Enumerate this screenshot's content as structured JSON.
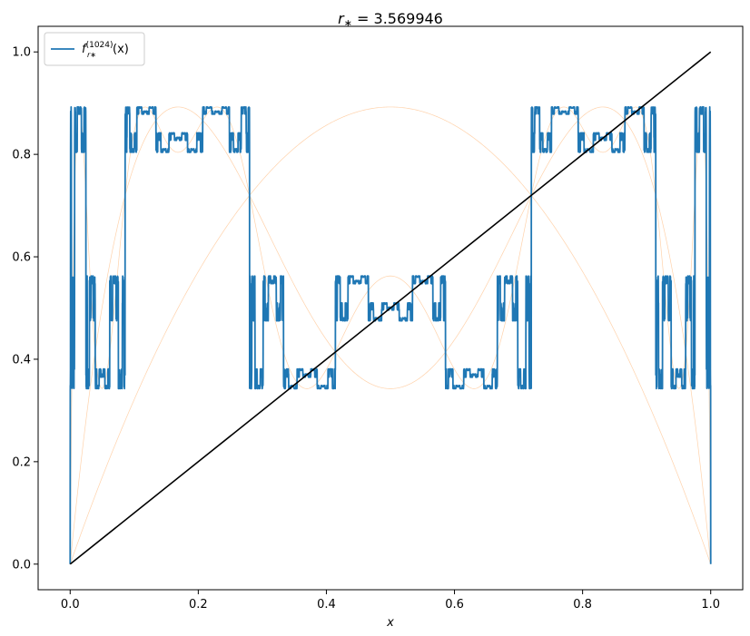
{
  "chart_data": {
    "type": "line",
    "title": "r∗ = 3.569946",
    "xlabel": "x",
    "ylabel": "",
    "xlim": [
      -0.05,
      1.05
    ],
    "ylim": [
      -0.05,
      1.05
    ],
    "x_ticks": [
      0.0,
      0.2,
      0.4,
      0.6,
      0.8,
      1.0
    ],
    "y_ticks": [
      0.0,
      0.2,
      0.4,
      0.6,
      0.8,
      1.0
    ],
    "x_tick_labels": [
      "0.0",
      "0.2",
      "0.4",
      "0.6",
      "0.8",
      "1.0"
    ],
    "y_tick_labels": [
      "0.0",
      "0.2",
      "0.4",
      "0.6",
      "0.8",
      "1.0"
    ],
    "r": 3.569946,
    "grid": false,
    "legend_position": "top-left",
    "series": [
      {
        "name": "f_{r∗}^{(1024)}(x)",
        "legend_main": "f",
        "legend_sup": "(1024)",
        "legend_sub": "r∗",
        "legend_tail": "(x)",
        "kind": "iterate",
        "iterations": 1024,
        "color": "#1f77b4"
      },
      {
        "kind": "iterate",
        "iterations": 1,
        "color": "#ff7f0e"
      },
      {
        "kind": "iterate",
        "iterations": 2,
        "color": "#ff7f0e"
      },
      {
        "kind": "iterate",
        "iterations": 4,
        "color": "#ff7f0e"
      },
      {
        "kind": "identity",
        "x": [
          0,
          1
        ],
        "y": [
          0,
          1
        ],
        "color": "#000000"
      }
    ]
  }
}
